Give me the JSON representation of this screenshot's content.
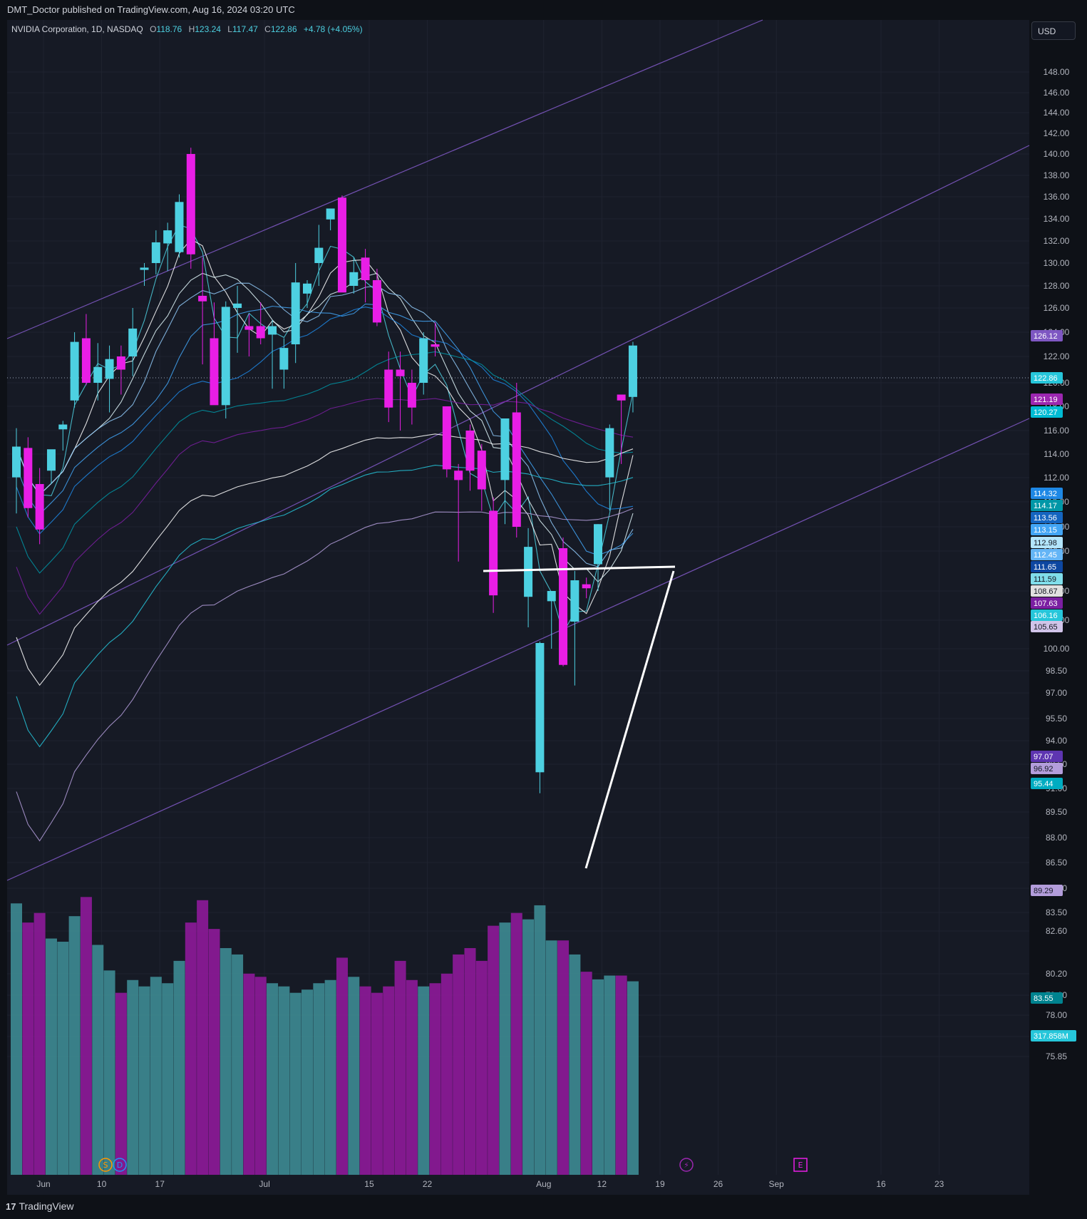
{
  "header": {
    "published": "DMT_Doctor published on TradingView.com, Aug 16, 2024 03:20 UTC"
  },
  "legend": {
    "symbol": "NVIDIA Corporation, 1D, NASDAQ",
    "open_label": "O",
    "open": "118.76",
    "high_label": "H",
    "high": "123.24",
    "low_label": "L",
    "low": "117.47",
    "close_label": "C",
    "close": "122.86",
    "change": "+4.78 (+4.05%)"
  },
  "currency_button": "USD",
  "footer": {
    "brand": "TradingView"
  },
  "colors": {
    "background": "#131722",
    "bull": "#4dd0e1",
    "bear": "#e91ee6",
    "vol_bull": "#3d8b93",
    "vol_bear": "#8e1a9a",
    "channel": "#7e57c2"
  },
  "chart_data": {
    "type": "candlestick",
    "price_axis_ticks": [
      "148.00",
      "146.00",
      "144.00",
      "142.00",
      "140.00",
      "138.00",
      "136.00",
      "134.00",
      "132.00",
      "130.00",
      "128.00",
      "126.00",
      "124.00",
      "122.00",
      "120.00",
      "118.00",
      "116.00",
      "114.00",
      "112.00",
      "110.00",
      "108.00",
      "106.00",
      "104.00",
      "102.00",
      "100.00",
      "98.50",
      "97.00",
      "95.50",
      "94.00",
      "92.50",
      "91.00",
      "89.50",
      "88.00",
      "86.50",
      "85.00",
      "83.50",
      "82.60",
      "80.20",
      "79.10",
      "78.00",
      "76.90",
      "75.85"
    ],
    "time_axis_ticks": [
      {
        "label": "Jun",
        "day": 0
      },
      {
        "label": "10",
        "day": 5
      },
      {
        "label": "17",
        "day": 10
      },
      {
        "label": "Jul",
        "day": 19
      },
      {
        "label": "15",
        "day": 28
      },
      {
        "label": "22",
        "day": 33
      },
      {
        "label": "Aug",
        "day": 43
      },
      {
        "label": "12",
        "day": 48
      },
      {
        "label": "19",
        "day": 53
      },
      {
        "label": "26",
        "day": 58
      },
      {
        "label": "Sep",
        "day": 63
      },
      {
        "label": "16",
        "day": 72
      },
      {
        "label": "23",
        "day": 77
      }
    ],
    "candles": [
      {
        "o": 112.5,
        "h": 116.2,
        "l": 109.8,
        "c": 114.8
      },
      {
        "o": 114.7,
        "h": 115.5,
        "l": 109.5,
        "c": 110.2
      },
      {
        "o": 112.0,
        "h": 113.2,
        "l": 107.5,
        "c": 108.6
      },
      {
        "o": 113.0,
        "h": 114.5,
        "l": 112.0,
        "c": 114.6
      },
      {
        "o": 116.1,
        "h": 116.8,
        "l": 114.5,
        "c": 116.5
      },
      {
        "o": 118.5,
        "h": 124.0,
        "l": 117.9,
        "c": 123.2
      },
      {
        "o": 123.5,
        "h": 125.5,
        "l": 119.8,
        "c": 120.0
      },
      {
        "o": 120.0,
        "h": 123.1,
        "l": 118.5,
        "c": 121.2
      },
      {
        "o": 120.3,
        "h": 122.9,
        "l": 117.5,
        "c": 121.8
      },
      {
        "o": 122.0,
        "h": 122.9,
        "l": 119.0,
        "c": 121.0
      },
      {
        "o": 122.0,
        "h": 126.0,
        "l": 120.5,
        "c": 124.3
      },
      {
        "o": 129.4,
        "h": 130.0,
        "l": 128.0,
        "c": 129.6
      },
      {
        "o": 130.0,
        "h": 133.0,
        "l": 129.0,
        "c": 131.9
      },
      {
        "o": 131.8,
        "h": 133.7,
        "l": 129.3,
        "c": 133.0
      },
      {
        "o": 131.0,
        "h": 136.3,
        "l": 130.5,
        "c": 135.6
      },
      {
        "o": 140.0,
        "h": 140.6,
        "l": 129.5,
        "c": 130.8
      },
      {
        "o": 127.1,
        "h": 130.5,
        "l": 121.4,
        "c": 126.6
      },
      {
        "o": 123.5,
        "h": 126.5,
        "l": 118.2,
        "c": 118.1
      },
      {
        "o": 118.1,
        "h": 126.6,
        "l": 117.0,
        "c": 126.1
      },
      {
        "o": 126.0,
        "h": 128.0,
        "l": 122.3,
        "c": 126.4
      },
      {
        "o": 124.5,
        "h": 125.5,
        "l": 122.0,
        "c": 124.2
      },
      {
        "o": 124.5,
        "h": 126.5,
        "l": 123.0,
        "c": 123.5
      },
      {
        "o": 123.8,
        "h": 125.0,
        "l": 119.5,
        "c": 124.5
      },
      {
        "o": 121.0,
        "h": 123.5,
        "l": 119.5,
        "c": 122.7
      },
      {
        "o": 123.0,
        "h": 130.0,
        "l": 121.5,
        "c": 128.3
      },
      {
        "o": 127.3,
        "h": 128.5,
        "l": 126.0,
        "c": 128.2
      },
      {
        "o": 130.0,
        "h": 133.5,
        "l": 128.0,
        "c": 131.4
      },
      {
        "o": 134.0,
        "h": 135.0,
        "l": 133.0,
        "c": 135.0
      },
      {
        "o": 136.0,
        "h": 136.2,
        "l": 127.5,
        "c": 127.4
      },
      {
        "o": 128.0,
        "h": 130.5,
        "l": 127.3,
        "c": 129.2
      },
      {
        "o": 130.5,
        "h": 131.3,
        "l": 126.5,
        "c": 128.5
      },
      {
        "o": 128.5,
        "h": 129.5,
        "l": 124.5,
        "c": 124.8
      },
      {
        "o": 121.0,
        "h": 122.4,
        "l": 116.7,
        "c": 117.9
      },
      {
        "o": 121.0,
        "h": 122.4,
        "l": 116.0,
        "c": 120.5
      },
      {
        "o": 120.0,
        "h": 121.0,
        "l": 116.5,
        "c": 117.9
      },
      {
        "o": 120.0,
        "h": 124.0,
        "l": 119.0,
        "c": 123.5
      },
      {
        "o": 123.0,
        "h": 124.8,
        "l": 122.0,
        "c": 122.8
      },
      {
        "o": 118.0,
        "h": 118.0,
        "l": 112.5,
        "c": 113.1
      },
      {
        "o": 113.0,
        "h": 113.5,
        "l": 106.2,
        "c": 112.3
      },
      {
        "o": 116.0,
        "h": 116.5,
        "l": 111.5,
        "c": 113.0
      },
      {
        "o": 114.5,
        "h": 115.0,
        "l": 110.0,
        "c": 111.6
      },
      {
        "o": 110.0,
        "h": 111.0,
        "l": 102.5,
        "c": 103.7
      },
      {
        "o": 112.3,
        "h": 117.0,
        "l": 109.0,
        "c": 117.0
      },
      {
        "o": 117.5,
        "h": 120.0,
        "l": 108.0,
        "c": 108.8
      },
      {
        "o": 103.6,
        "h": 108.7,
        "l": 101.5,
        "c": 107.3
      },
      {
        "o": 92.0,
        "h": 100.5,
        "l": 90.7,
        "c": 100.4
      },
      {
        "o": 103.3,
        "h": 104.0,
        "l": 100.0,
        "c": 104.0
      },
      {
        "o": 107.2,
        "h": 108.0,
        "l": 98.8,
        "c": 98.9
      },
      {
        "o": 101.9,
        "h": 105.5,
        "l": 97.5,
        "c": 104.8
      },
      {
        "o": 104.5,
        "h": 105.0,
        "l": 103.5,
        "c": 104.2
      },
      {
        "o": 106.0,
        "h": 109.0,
        "l": 104.0,
        "c": 109.0
      },
      {
        "o": 112.5,
        "h": 116.5,
        "l": 110.0,
        "c": 116.2
      },
      {
        "o": 119.0,
        "h": 119.0,
        "l": 113.5,
        "c": 118.5
      },
      {
        "o": 118.8,
        "h": 123.2,
        "l": 117.5,
        "c": 122.9
      }
    ],
    "volumes_m": [
      425,
      395,
      410,
      370,
      365,
      405,
      435,
      360,
      320,
      285,
      305,
      295,
      310,
      300,
      335,
      395,
      430,
      385,
      355,
      345,
      315,
      310,
      300,
      295,
      285,
      290,
      300,
      305,
      340,
      310,
      295,
      285,
      295,
      335,
      305,
      295,
      300,
      315,
      345,
      355,
      335,
      390,
      395,
      410,
      400,
      422,
      367,
      367,
      345,
      318,
      306,
      312,
      312,
      303
    ],
    "price_labels": [
      {
        "text": "126.12",
        "bg": "#7e57c2"
      },
      {
        "text": "122.86",
        "bg": "#26c6da"
      },
      {
        "text": "121.19",
        "bg": "#9c27b0"
      },
      {
        "text": "120.27",
        "bg": "#00bcd4"
      },
      {
        "text": "114.32",
        "bg": "#1e88e5"
      },
      {
        "text": "114.17",
        "bg": "#0097a7"
      },
      {
        "text": "113.56",
        "bg": "#1565c0"
      },
      {
        "text": "113.15",
        "bg": "#42a5f5"
      },
      {
        "text": "112.98",
        "bg": "#b3e5fc"
      },
      {
        "text": "112.45",
        "bg": "#64b5f6"
      },
      {
        "text": "111.65",
        "bg": "#0d47a1"
      },
      {
        "text": "111.59",
        "bg": "#80deea"
      },
      {
        "text": "108.67",
        "bg": "#e0e0e0"
      },
      {
        "text": "107.63",
        "bg": "#7b1fa2"
      },
      {
        "text": "106.16",
        "bg": "#26c6da"
      },
      {
        "text": "105.65",
        "bg": "#d1c4e9"
      },
      {
        "text": "97.07",
        "bg": "#5e35b1"
      },
      {
        "text": "96.92",
        "bg": "#b39ddb"
      },
      {
        "text": "95.44",
        "bg": "#00acc1"
      },
      {
        "text": "89.29",
        "bg": "#b39ddb"
      },
      {
        "text": "83.55",
        "bg": "#00838f"
      },
      {
        "text": "317.858M",
        "bg": "#26c6da"
      }
    ],
    "event_markers": [
      {
        "text": "S",
        "color": "#ff9800"
      },
      {
        "text": "D",
        "color": "#2196f3"
      },
      {
        "text": "⚡",
        "color": "#9c27b0"
      },
      {
        "text": "E",
        "color": "#e91ee6"
      }
    ]
  }
}
